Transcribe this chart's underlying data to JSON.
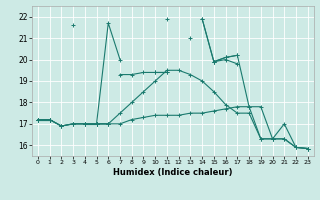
{
  "xlabel": "Humidex (Indice chaleur)",
  "x": [
    0,
    1,
    2,
    3,
    4,
    5,
    6,
    7,
    8,
    9,
    10,
    11,
    12,
    13,
    14,
    15,
    16,
    17,
    18,
    19,
    20,
    21,
    22,
    23
  ],
  "line1": [
    17.2,
    17.2,
    null,
    21.6,
    null,
    17.0,
    21.7,
    20.0,
    null,
    null,
    null,
    21.9,
    null,
    21.0,
    null,
    19.9,
    20.0,
    19.8,
    null,
    null,
    null,
    null,
    null,
    null
  ],
  "line2": [
    17.2,
    17.2,
    16.9,
    17.0,
    17.0,
    17.0,
    17.0,
    null,
    null,
    null,
    null,
    null,
    null,
    null,
    null,
    null,
    null,
    null,
    null,
    null,
    null,
    null,
    null,
    null
  ],
  "line3": [
    null,
    null,
    null,
    null,
    null,
    null,
    null,
    null,
    null,
    null,
    19.4,
    19.4,
    null,
    null,
    21.9,
    19.9,
    20.1,
    20.2,
    null,
    null,
    null,
    null,
    null,
    null
  ],
  "line4": [
    17.2,
    17.2,
    null,
    null,
    17.0,
    17.0,
    null,
    19.3,
    19.3,
    19.4,
    19.4,
    19.4,
    null,
    null,
    null,
    null,
    null,
    null,
    null,
    null,
    null,
    null,
    null,
    null
  ],
  "line5": [
    17.2,
    17.2,
    16.9,
    17.0,
    17.0,
    17.0,
    17.0,
    17.5,
    18.0,
    18.5,
    19.0,
    19.5,
    19.5,
    19.3,
    19.0,
    18.5,
    17.9,
    17.5,
    17.5,
    16.3,
    16.3,
    16.3,
    15.9,
    15.85
  ],
  "line6": [
    17.2,
    17.2,
    16.9,
    17.0,
    17.0,
    17.0,
    17.0,
    17.0,
    17.2,
    17.3,
    17.4,
    17.4,
    17.4,
    17.5,
    17.5,
    17.6,
    17.7,
    17.8,
    17.8,
    16.3,
    16.3,
    16.3,
    15.9,
    15.85
  ],
  "line7": [
    null,
    null,
    null,
    null,
    null,
    null,
    null,
    null,
    null,
    null,
    null,
    null,
    null,
    null,
    21.9,
    19.9,
    20.1,
    20.2,
    17.8,
    17.8,
    16.3,
    17.0,
    15.9,
    15.85
  ],
  "bg_color": "#cdeae5",
  "grid_color": "#ffffff",
  "line_color": "#1a7a6e",
  "ylim": [
    15.5,
    22.5
  ],
  "yticks": [
    16,
    17,
    18,
    19,
    20,
    21,
    22
  ],
  "xlim": [
    -0.5,
    23.5
  ],
  "xticks": [
    0,
    1,
    2,
    3,
    4,
    5,
    6,
    7,
    8,
    9,
    10,
    11,
    12,
    13,
    14,
    15,
    16,
    17,
    18,
    19,
    20,
    21,
    22,
    23
  ]
}
